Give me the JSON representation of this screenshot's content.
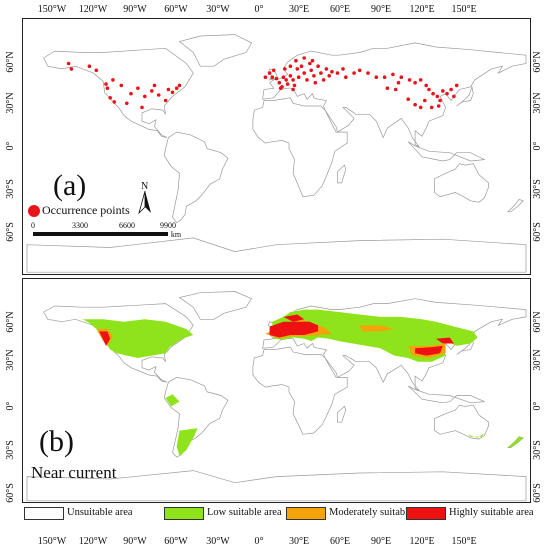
{
  "longitude_ticks": [
    "150°W",
    "120°W",
    "90°W",
    "60°W",
    "30°W",
    "0°",
    "30°E",
    "60°E",
    "90°E",
    "120°E",
    "150°E"
  ],
  "latitude_ticks": [
    "60°N",
    "30°N",
    "0°",
    "30°S",
    "60°S"
  ],
  "panel_a": {
    "label": "(a)",
    "legend_label": "Occurrence points",
    "legend_color": "#e8141a",
    "scale_labels": [
      "0",
      "3300",
      "6600",
      "9900"
    ],
    "scale_unit": "km",
    "north_label": "N"
  },
  "panel_b": {
    "label": "(b)",
    "subtitle": "Near current"
  },
  "legend": [
    {
      "label": "Unsuitable area",
      "color": "#ffffff"
    },
    {
      "label": "Low suitable area",
      "color": "#8fe31a"
    },
    {
      "label": "Moderately suitable area",
      "color": "#f5a30a"
    },
    {
      "label": "Highly suitable area",
      "color": "#ee1111"
    }
  ],
  "occurrence_points": [
    [
      -150,
      62
    ],
    [
      -148,
      58
    ],
    [
      -135,
      60
    ],
    [
      -130,
      57
    ],
    [
      -123,
      47
    ],
    [
      -122,
      44
    ],
    [
      -120,
      37
    ],
    [
      -117,
      34
    ],
    [
      -118,
      50
    ],
    [
      -112,
      46
    ],
    [
      -105,
      40
    ],
    [
      -100,
      44
    ],
    [
      -95,
      38
    ],
    [
      -90,
      42
    ],
    [
      -85,
      39
    ],
    [
      -80,
      35
    ],
    [
      -78,
      43
    ],
    [
      -75,
      41
    ],
    [
      -72,
      44
    ],
    [
      -88,
      46
    ],
    [
      -108,
      33
    ],
    [
      -97,
      30
    ],
    [
      -70,
      46
    ],
    [
      -8,
      52
    ],
    [
      -5,
      55
    ],
    [
      -3,
      52
    ],
    [
      0,
      51
    ],
    [
      2,
      48
    ],
    [
      4,
      45
    ],
    [
      5,
      52
    ],
    [
      7,
      50
    ],
    [
      8,
      47
    ],
    [
      10,
      53
    ],
    [
      12,
      50
    ],
    [
      13,
      46
    ],
    [
      15,
      58
    ],
    [
      16,
      52
    ],
    [
      18,
      60
    ],
    [
      20,
      55
    ],
    [
      22,
      50
    ],
    [
      24,
      62
    ],
    [
      25,
      57
    ],
    [
      27,
      53
    ],
    [
      28,
      48
    ],
    [
      30,
      60
    ],
    [
      32,
      55
    ],
    [
      34,
      50
    ],
    [
      36,
      58
    ],
    [
      38,
      53
    ],
    [
      40,
      56
    ],
    [
      10,
      60
    ],
    [
      14,
      64
    ],
    [
      20,
      66
    ],
    [
      26,
      64
    ],
    [
      6,
      58
    ],
    [
      -2,
      57
    ],
    [
      3,
      44
    ],
    [
      12,
      43
    ],
    [
      44,
      55
    ],
    [
      50,
      52
    ],
    [
      56,
      55
    ],
    [
      48,
      58
    ],
    [
      60,
      57
    ],
    [
      66,
      55
    ],
    [
      72,
      52
    ],
    [
      78,
      52
    ],
    [
      84,
      54
    ],
    [
      90,
      52
    ],
    [
      96,
      50
    ],
    [
      100,
      48
    ],
    [
      104,
      50
    ],
    [
      108,
      46
    ],
    [
      110,
      43
    ],
    [
      113,
      40
    ],
    [
      116,
      38
    ],
    [
      118,
      35
    ],
    [
      120,
      42
    ],
    [
      123,
      40
    ],
    [
      126,
      43
    ],
    [
      128,
      38
    ],
    [
      130,
      46
    ],
    [
      107,
      35
    ],
    [
      104,
      30
    ],
    [
      112,
      30
    ],
    [
      117,
      31
    ],
    [
      100,
      32
    ],
    [
      95,
      36
    ],
    [
      86,
      43
    ],
    [
      80,
      44
    ],
    [
      88,
      48
    ]
  ]
}
